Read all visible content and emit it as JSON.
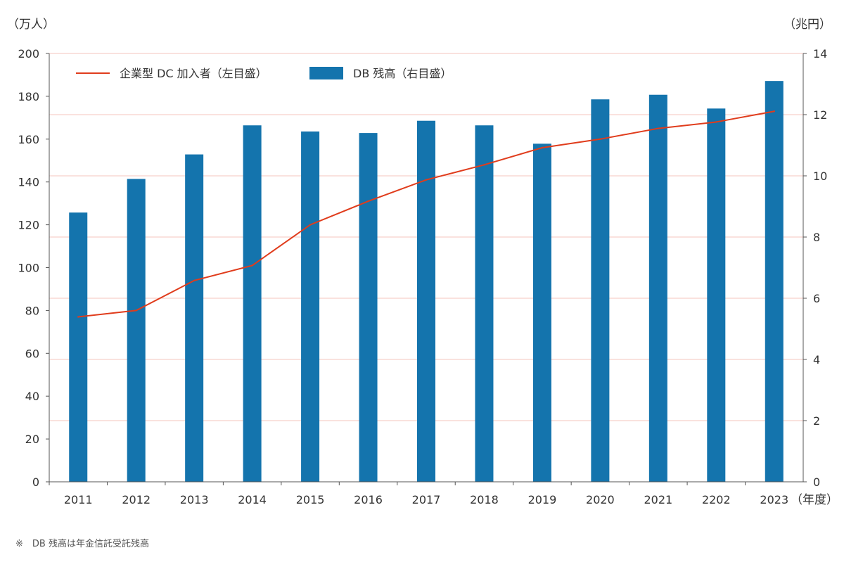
{
  "chart_data": {
    "type": "bar+line",
    "categories": [
      "2011",
      "2012",
      "2013",
      "2014",
      "2015",
      "2016",
      "2017",
      "2018",
      "2019",
      "2020",
      "2021",
      "2202",
      "2023"
    ],
    "series": [
      {
        "name": "DB 残高（右目盛）",
        "kind": "bar",
        "axis": "right",
        "color": "#1474ad",
        "values": [
          8.8,
          9.9,
          10.7,
          11.65,
          11.45,
          11.4,
          11.8,
          11.65,
          11.05,
          12.5,
          12.65,
          12.2,
          13.1
        ]
      },
      {
        "name": "企業型 DC 加入者（左目盛）",
        "kind": "line",
        "axis": "left",
        "color": "#e03c1c",
        "values": [
          77,
          80,
          94,
          101,
          120,
          131,
          141,
          148,
          156,
          160,
          165,
          168,
          173
        ]
      }
    ],
    "y_left": {
      "label": "（万人）",
      "min": 0,
      "max": 200,
      "ticks": [
        "0",
        "20",
        "40",
        "60",
        "80",
        "100",
        "120",
        "140",
        "160",
        "180",
        "200"
      ]
    },
    "y_right": {
      "label": "（兆円）",
      "min": 0,
      "max": 14,
      "ticks": [
        "0",
        "2",
        "4",
        "6",
        "8",
        "10",
        "12",
        "14"
      ]
    },
    "x_unit": "（年度）",
    "grid": true,
    "grid_color": "#f4c4bc",
    "legend_position": "top-left"
  },
  "footnote": "※　DB 残高は年金信託受託残高"
}
